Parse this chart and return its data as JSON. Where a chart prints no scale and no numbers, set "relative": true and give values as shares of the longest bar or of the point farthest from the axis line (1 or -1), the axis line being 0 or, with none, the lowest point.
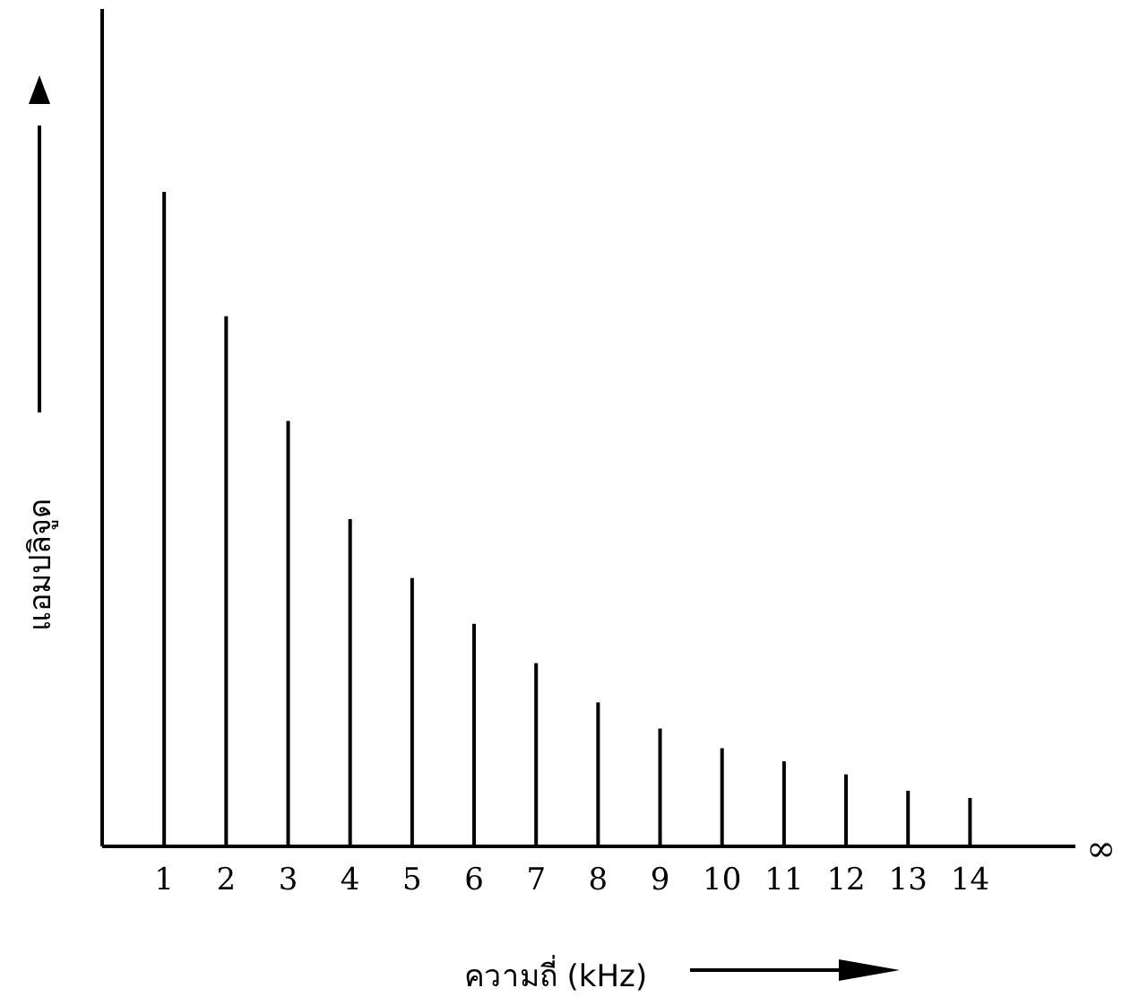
{
  "chart_data": {
    "type": "bar",
    "relative": true,
    "xlabel": "ความถี่ (kHz)",
    "ylabel": "แอมปลิจูด",
    "x": [
      1,
      2,
      3,
      4,
      5,
      6,
      7,
      8,
      9,
      10,
      11,
      12,
      13,
      14
    ],
    "values": [
      1,
      0.81,
      0.65,
      0.5,
      0.41,
      0.34,
      0.28,
      0.22,
      0.18,
      0.15,
      0.13,
      0.11,
      0.085,
      0.074
    ],
    "color": "#000000",
    "xlim": [
      0,
      15.7
    ],
    "xticks": [
      1,
      2,
      3,
      4,
      5,
      6,
      7,
      8,
      9,
      10,
      11,
      12,
      13,
      14
    ],
    "annotations": [
      "∞"
    ]
  }
}
